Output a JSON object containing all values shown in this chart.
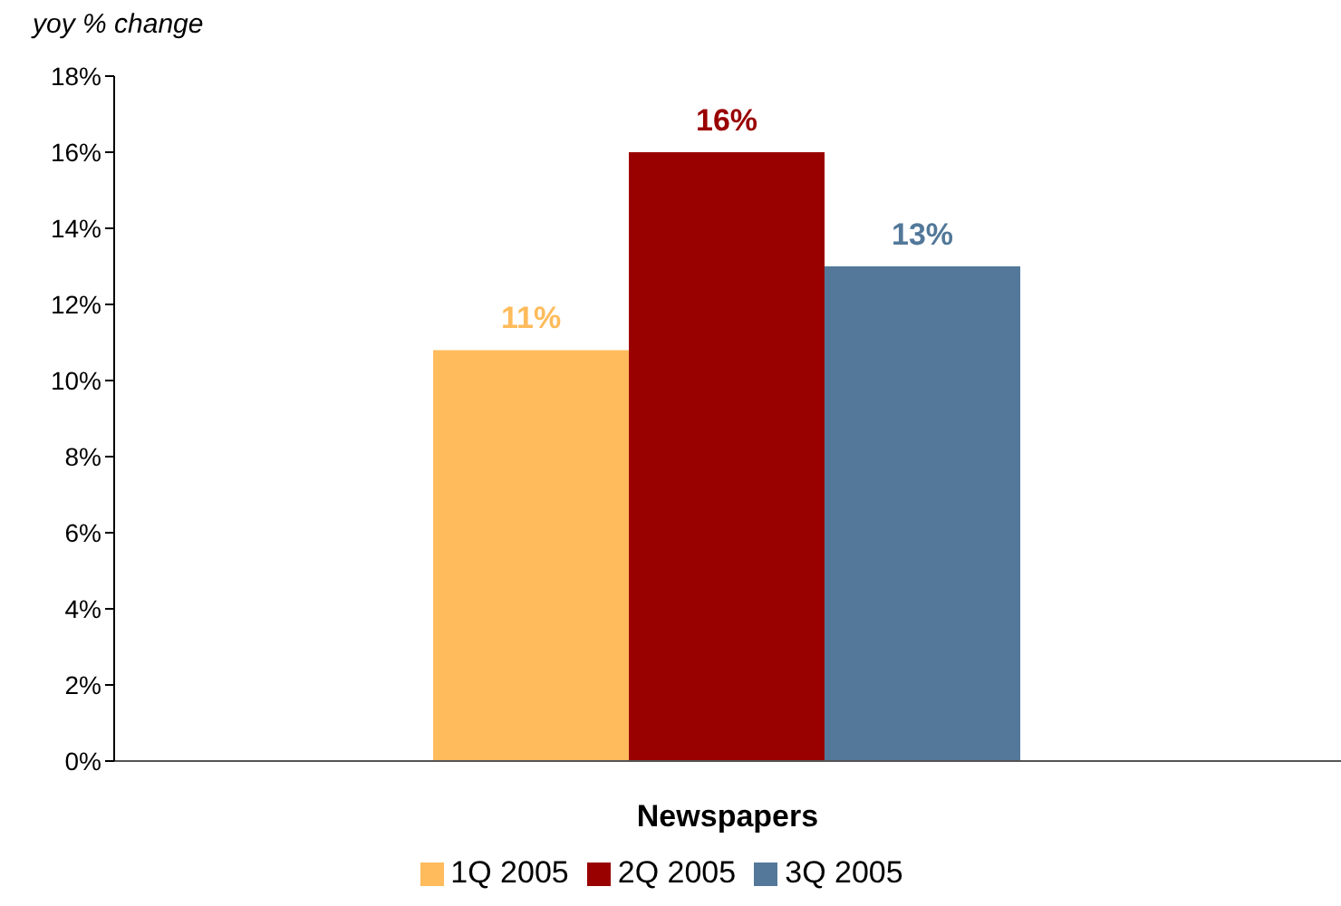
{
  "chart_data": {
    "type": "bar",
    "ylabel": "yoy % change",
    "categories": [
      "Newspapers"
    ],
    "series": [
      {
        "name": "1Q 2005",
        "color": "#ffbb5c",
        "values": [
          10.8
        ],
        "value_labels": [
          "11%"
        ]
      },
      {
        "name": "2Q 2005",
        "color": "#990000",
        "values": [
          16
        ],
        "value_labels": [
          "16%"
        ]
      },
      {
        "name": "3Q 2005",
        "color": "#537899",
        "values": [
          13
        ],
        "value_labels": [
          "13%"
        ]
      }
    ],
    "ylim": [
      0,
      18
    ],
    "yticks": [
      {
        "value": 0,
        "label": "0%"
      },
      {
        "value": 2,
        "label": "2%"
      },
      {
        "value": 4,
        "label": "4%"
      },
      {
        "value": 6,
        "label": "6%"
      },
      {
        "value": 8,
        "label": "8%"
      },
      {
        "value": 10,
        "label": "10%"
      },
      {
        "value": 12,
        "label": "12%"
      },
      {
        "value": 14,
        "label": "14%"
      },
      {
        "value": 16,
        "label": "16%"
      },
      {
        "value": 18,
        "label": "18%"
      }
    ],
    "grid": false,
    "legend": "bottom"
  }
}
